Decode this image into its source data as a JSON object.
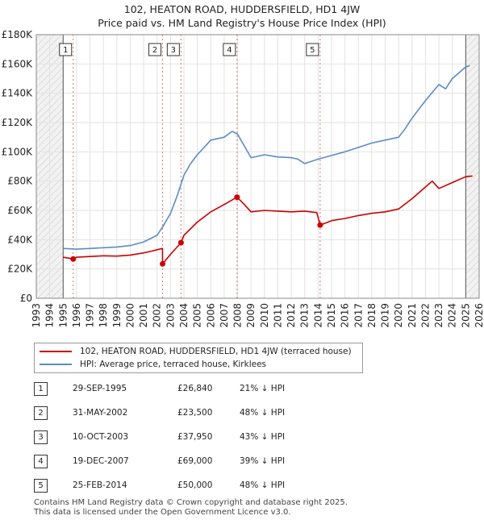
{
  "chart_data": {
    "type": "line",
    "title": "102, HEATON ROAD, HUDDERSFIELD, HD1 4JW",
    "subtitle": "Price paid vs. HM Land Registry's House Price Index (HPI)",
    "xlabel": "",
    "ylabel": "",
    "xlim": [
      1993,
      2026
    ],
    "ylim": [
      0,
      180000
    ],
    "x_ticks": [
      "1993",
      "1994",
      "1995",
      "1996",
      "1997",
      "1998",
      "1999",
      "2000",
      "2001",
      "2002",
      "2003",
      "2004",
      "2005",
      "2006",
      "2007",
      "2008",
      "2009",
      "2010",
      "2011",
      "2012",
      "2013",
      "2014",
      "2015",
      "2016",
      "2017",
      "2018",
      "2019",
      "2020",
      "2021",
      "2022",
      "2023",
      "2024",
      "2025",
      "2026"
    ],
    "y_ticks": [
      {
        "value": 0,
        "label": "£0"
      },
      {
        "value": 20000,
        "label": "£20K"
      },
      {
        "value": 40000,
        "label": "£40K"
      },
      {
        "value": 60000,
        "label": "£60K"
      },
      {
        "value": 80000,
        "label": "£80K"
      },
      {
        "value": 100000,
        "label": "£100K"
      },
      {
        "value": 120000,
        "label": "£120K"
      },
      {
        "value": 140000,
        "label": "£140K"
      },
      {
        "value": 160000,
        "label": "£160K"
      },
      {
        "value": 180000,
        "label": "£180K"
      }
    ],
    "shaded_ranges": [
      [
        1993,
        1995.0
      ],
      [
        2025.0,
        2026
      ]
    ],
    "series": [
      {
        "name": "102, HEATON ROAD, HUDDERSFIELD, HD1 4JW (terraced house)",
        "color": "#cc0000",
        "x": [
          1995.0,
          1995.75,
          1996,
          1997,
          1998,
          1999,
          2000,
          2001,
          2001.5,
          2002.4,
          2002.41,
          2003,
          2003.78,
          2004,
          2005,
          2006,
          2007,
          2007.96,
          2008.5,
          2009,
          2010,
          2011,
          2012,
          2013,
          2013.9,
          2014.15,
          2015,
          2016,
          2017,
          2018,
          2019,
          2020,
          2021,
          2022,
          2022.5,
          2023,
          2024,
          2025,
          2025.5
        ],
        "y": [
          28000,
          26840,
          28000,
          28500,
          29000,
          28800,
          29500,
          31000,
          32000,
          34000,
          23500,
          30000,
          37950,
          43000,
          52000,
          59000,
          64000,
          69000,
          64000,
          59000,
          60000,
          59500,
          59000,
          59500,
          58500,
          50000,
          53000,
          54500,
          56500,
          58000,
          59000,
          61000,
          68000,
          76000,
          80000,
          75000,
          79000,
          83000,
          83500
        ]
      },
      {
        "name": "HPI: Average price, terraced house, Kirklees",
        "color": "#5b8cc4",
        "x": [
          1995.0,
          1996,
          1997,
          1998,
          1999,
          2000,
          2001,
          2002,
          2002.5,
          2003,
          2003.5,
          2004,
          2004.5,
          2005,
          2006,
          2007,
          2007.6,
          2008,
          2008.5,
          2009,
          2010,
          2011,
          2012,
          2012.5,
          2013,
          2014,
          2015,
          2016,
          2017,
          2018,
          2019,
          2020,
          2020.5,
          2021,
          2022,
          2023,
          2023.5,
          2024,
          2025,
          2025.3
        ],
        "y": [
          34000,
          33500,
          34000,
          34500,
          35000,
          36000,
          38500,
          43000,
          50000,
          58000,
          70000,
          84000,
          92000,
          98000,
          108000,
          110000,
          114000,
          112000,
          104000,
          96000,
          98000,
          96500,
          96000,
          95000,
          92000,
          95000,
          97500,
          100000,
          103000,
          106000,
          108000,
          110000,
          116000,
          123000,
          135000,
          146000,
          143000,
          150000,
          158000,
          159000
        ]
      }
    ],
    "sales": [
      {
        "id": "1",
        "x": 1995.75,
        "y": 26840,
        "date": "29-SEP-1995",
        "price": "£26,840",
        "hpi": "21% ↓ HPI"
      },
      {
        "id": "2",
        "x": 2002.41,
        "y": 23500,
        "date": "31-MAY-2002",
        "price": "£23,500",
        "hpi": "48% ↓ HPI"
      },
      {
        "id": "3",
        "x": 2003.78,
        "y": 37950,
        "date": "10-OCT-2003",
        "price": "£37,950",
        "hpi": "43% ↓ HPI"
      },
      {
        "id": "4",
        "x": 2007.96,
        "y": 69000,
        "date": "19-DEC-2007",
        "price": "£69,000",
        "hpi": "39% ↓ HPI"
      },
      {
        "id": "5",
        "x": 2014.15,
        "y": 50000,
        "date": "25-FEB-2014",
        "price": "£50,000",
        "hpi": "48% ↓ HPI"
      }
    ]
  },
  "legend": {
    "property_label": "102, HEATON ROAD, HUDDERSFIELD, HD1 4JW (terraced house)",
    "hpi_label": "HPI: Average price, terraced house, Kirklees"
  },
  "footer": {
    "line1": "Contains HM Land Registry data © Crown copyright and database right 2025.",
    "line2": "This data is licensed under the Open Government Licence v3.0."
  }
}
